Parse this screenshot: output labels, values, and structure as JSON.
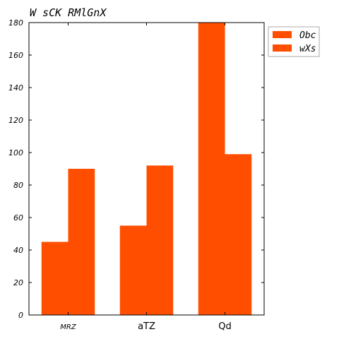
{
  "chart_data": {
    "type": "bar",
    "title": "W sCK RMlGnX",
    "categories": [
      "MRZ",
      "aTZ",
      "Qd"
    ],
    "series": [
      {
        "name": "Obc",
        "values": [
          45,
          55,
          180
        ],
        "color": "#ff4e00"
      },
      {
        "name": "wXs",
        "values": [
          90,
          92,
          99
        ],
        "color": "#ff4e00"
      }
    ],
    "xlabel": "",
    "ylabel": "",
    "ylim": [
      0,
      180
    ],
    "yticks": [
      0,
      20,
      40,
      60,
      80,
      100,
      120,
      140,
      160,
      180
    ],
    "grid": false,
    "legend_position": "top-right outside"
  }
}
